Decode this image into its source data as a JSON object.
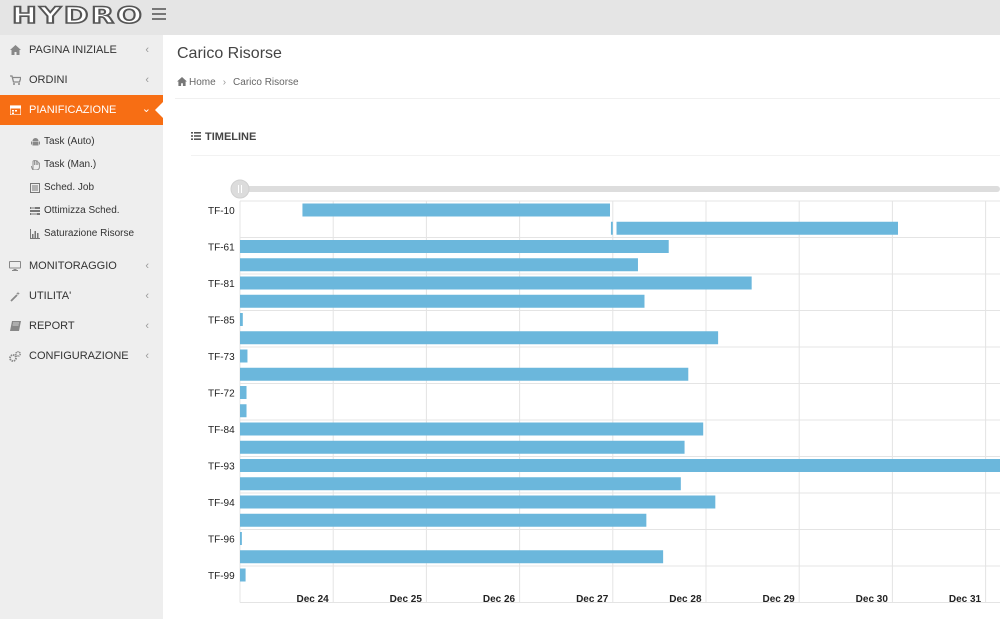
{
  "header": {
    "logo_text": "HYDRO"
  },
  "sidebar": {
    "items": [
      {
        "label": "PAGINA INIZIALE",
        "icon": "home-icon"
      },
      {
        "label": "ORDINI",
        "icon": "cart-icon"
      },
      {
        "label": "PIANIFICAZIONE",
        "icon": "calendar-icon",
        "active": true
      },
      {
        "label": "MONITORAGGIO",
        "icon": "monitor-icon"
      },
      {
        "label": "UTILITA'",
        "icon": "wand-icon"
      },
      {
        "label": "REPORT",
        "icon": "book-icon"
      },
      {
        "label": "CONFIGURAZIONE",
        "icon": "gears-icon"
      }
    ],
    "submenu": [
      {
        "label": "Task (Auto)",
        "icon": "android-icon"
      },
      {
        "label": "Task (Man.)",
        "icon": "hand-icon"
      },
      {
        "label": "Sched. Job",
        "icon": "list-doc-icon"
      },
      {
        "label": "Ottimizza Sched.",
        "icon": "tasks-icon"
      },
      {
        "label": "Saturazione Risorse",
        "icon": "bar-chart-icon"
      }
    ]
  },
  "page": {
    "title": "Carico Risorse",
    "breadcrumb": {
      "home": "Home",
      "current": "Carico Risorse"
    },
    "panel_title": "TIMELINE"
  },
  "timeline": {
    "groups": [
      "TF-10",
      "TF-61",
      "TF-81",
      "TF-85",
      "TF-73",
      "TF-72",
      "TF-84",
      "TF-93",
      "TF-94",
      "TF-96",
      "TF-99"
    ],
    "dates": [
      "Dec 24",
      "Dec 25",
      "Dec 26",
      "Dec 27",
      "Dec 28",
      "Dec 29",
      "Dec 30",
      "Dec 31"
    ],
    "bar_color": "#6bb7dc",
    "tasks": [
      {
        "row": 0,
        "start": 23.67,
        "end": 26.97
      },
      {
        "row": 1,
        "start": 26.98,
        "end": 27.0
      },
      {
        "row": 1,
        "start": 27.04,
        "end": 30.06
      },
      {
        "row": 2,
        "start": 23.0,
        "end": 27.6
      },
      {
        "row": 3,
        "start": 23.0,
        "end": 27.27
      },
      {
        "row": 4,
        "start": 23.0,
        "end": 28.49
      },
      {
        "row": 5,
        "start": 23.0,
        "end": 27.34
      },
      {
        "row": 6,
        "start": 23.0,
        "end": 23.03
      },
      {
        "row": 7,
        "start": 23.0,
        "end": 28.13
      },
      {
        "row": 8,
        "start": 23.0,
        "end": 23.08
      },
      {
        "row": 9,
        "start": 23.0,
        "end": 27.81
      },
      {
        "row": 10,
        "start": 23.0,
        "end": 23.07
      },
      {
        "row": 11,
        "start": 23.0,
        "end": 23.07
      },
      {
        "row": 12,
        "start": 23.0,
        "end": 27.97
      },
      {
        "row": 13,
        "start": 23.0,
        "end": 27.77
      },
      {
        "row": 14,
        "start": 23.0,
        "end": 31.5
      },
      {
        "row": 15,
        "start": 23.0,
        "end": 27.73
      },
      {
        "row": 16,
        "start": 23.0,
        "end": 28.1
      },
      {
        "row": 17,
        "start": 23.0,
        "end": 27.36
      },
      {
        "row": 18,
        "start": 23.0,
        "end": 23.02
      },
      {
        "row": 19,
        "start": 23.0,
        "end": 27.54
      },
      {
        "row": 20,
        "start": 23.0,
        "end": 23.06
      }
    ]
  }
}
